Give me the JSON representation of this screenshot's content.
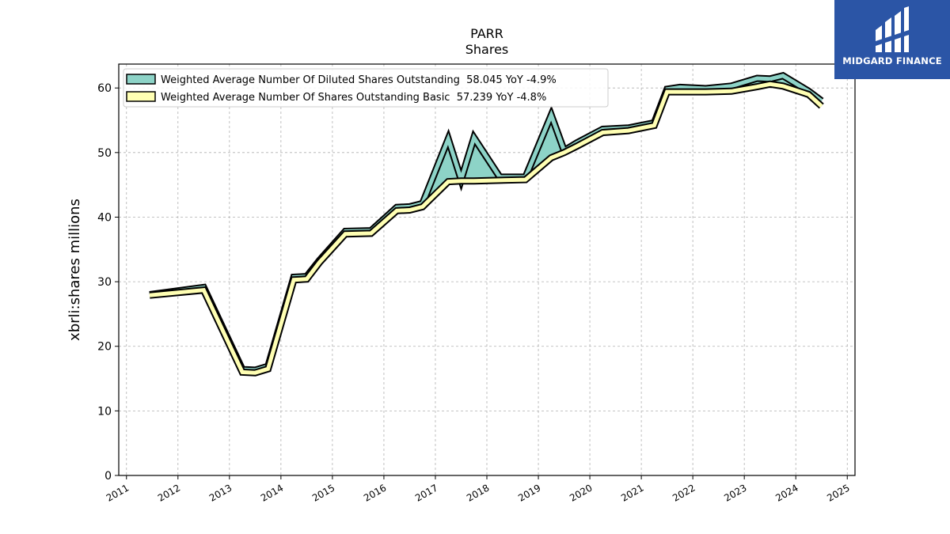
{
  "chart_data": {
    "type": "line",
    "title": "PARR",
    "subtitle": "Shares",
    "ylabel": "xbrli:shares millions",
    "xlabel": "",
    "xlim": [
      2010.85,
      2025.15
    ],
    "ylim": [
      0,
      63.7
    ],
    "yticks": [
      0,
      10,
      20,
      30,
      40,
      50,
      60
    ],
    "xticks": [
      "2011",
      "2012",
      "2013",
      "2014",
      "2015",
      "2016",
      "2017",
      "2018",
      "2019",
      "2020",
      "2021",
      "2022",
      "2023",
      "2024",
      "2025"
    ],
    "grid": true,
    "legend_position": "top-left",
    "series": [
      {
        "name": "Weighted Average Number Of Diluted Shares Outstanding  58.045 YoY -4.9%",
        "color": "#8dd3c7",
        "x": [
          2011.45,
          2012.5,
          2013.25,
          2013.5,
          2013.75,
          2014.25,
          2014.5,
          2014.75,
          2015.25,
          2015.75,
          2016.25,
          2016.5,
          2016.75,
          2017.25,
          2017.5,
          2017.75,
          2018.25,
          2018.75,
          2019.25,
          2019.5,
          2019.75,
          2020.25,
          2020.75,
          2021.25,
          2021.5,
          2021.75,
          2022.25,
          2022.75,
          2023.25,
          2023.5,
          2023.75,
          2024.25,
          2024.5
        ],
        "y": [
          28.0,
          29.1,
          16.4,
          16.3,
          16.9,
          30.7,
          30.8,
          33.3,
          37.8,
          37.9,
          41.5,
          41.6,
          42.1,
          52.1,
          45.8,
          52.3,
          46.2,
          46.2,
          55.8,
          50.3,
          51.5,
          53.6,
          53.8,
          54.6,
          59.8,
          60.1,
          59.9,
          60.3,
          61.5,
          61.4,
          61.9,
          59.5,
          58.0
        ]
      },
      {
        "name": "Weighted Average Number Of Shares Outstanding Basic  57.239 YoY -4.8%",
        "color": "#ffffb3",
        "x": [
          2011.45,
          2012.5,
          2013.25,
          2013.5,
          2013.75,
          2014.25,
          2014.5,
          2014.75,
          2015.25,
          2015.75,
          2016.25,
          2016.5,
          2016.75,
          2017.25,
          2017.5,
          2017.75,
          2018.25,
          2018.75,
          2019.25,
          2019.5,
          2019.75,
          2020.25,
          2020.75,
          2021.25,
          2021.5,
          2021.75,
          2022.25,
          2022.75,
          2023.25,
          2023.5,
          2023.75,
          2024.25,
          2024.5
        ],
        "y": [
          27.9,
          28.7,
          16.0,
          15.9,
          16.5,
          30.3,
          30.4,
          33.0,
          37.4,
          37.5,
          41.0,
          41.1,
          41.6,
          45.5,
          45.6,
          45.6,
          45.7,
          45.8,
          49.2,
          50.0,
          51.0,
          53.1,
          53.4,
          54.2,
          59.4,
          59.4,
          59.4,
          59.5,
          60.2,
          60.6,
          60.3,
          59.0,
          57.2
        ]
      }
    ]
  },
  "branding": {
    "logo_text": "MIDGARD FINANCE",
    "logo_color": "#2b55a6"
  }
}
